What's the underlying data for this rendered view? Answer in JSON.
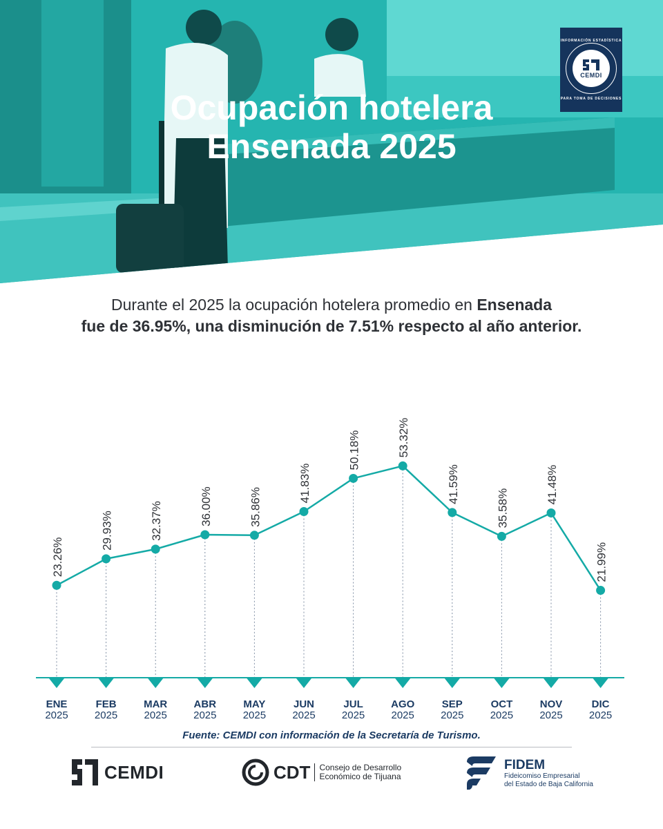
{
  "header": {
    "title_line1": "Ocupación hotelera",
    "title_line2": "Ensenada 2025",
    "badge": {
      "name": "CEMDI",
      "ring_top": "INFORMACIÓN ESTADÍSTICA",
      "ring_bottom": "PARA TOMA DE DECISIONES"
    }
  },
  "summary": {
    "part1": "Durante el 2025 la ocupación hotelera promedio en ",
    "bold1": "Ensenada",
    "bold2": "fue de 36.95%, una disminución de 7.51% respecto al año anterior."
  },
  "chart_data": {
    "type": "line",
    "categories": [
      "ENE",
      "FEB",
      "MAR",
      "ABR",
      "MAY",
      "JUN",
      "JUL",
      "AGO",
      "SEP",
      "OCT",
      "NOV",
      "DIC"
    ],
    "year_labels": [
      "2025",
      "2025",
      "2025",
      "2025",
      "2025",
      "2025",
      "2025",
      "2025",
      "2025",
      "2025",
      "2025",
      "2025"
    ],
    "values": [
      23.26,
      29.93,
      32.37,
      36.0,
      35.86,
      41.83,
      50.18,
      53.32,
      41.59,
      35.58,
      41.48,
      21.99
    ],
    "value_labels": [
      "23.26%",
      "29.93%",
      "32.37%",
      "36.00%",
      "35.86%",
      "41.83%",
      "50.18%",
      "53.32%",
      "41.59%",
      "35.58%",
      "41.48%",
      "21.99%"
    ],
    "title": "",
    "xlabel": "",
    "ylabel": "",
    "ylim": [
      0,
      60
    ],
    "grid": false,
    "colors": {
      "line": "#14aaa6",
      "axis": "#14aaa6",
      "drop_line": "#7f8ea3",
      "label": "#2e3136",
      "tick": "#1b3b63"
    }
  },
  "footer": {
    "source": "Fuente: CEMDI con información de la Secretaría de Turismo.",
    "logos": {
      "cemdi": "CEMDI",
      "cdt": "CDT",
      "cdt_desc_line1": "Consejo de Desarrollo",
      "cdt_desc_line2": "Económico de Tijuana",
      "fidem": "FIDEM",
      "fidem_desc_line1": "Fideicomiso Empresarial",
      "fidem_desc_line2": "del Estado de Baja California"
    }
  }
}
